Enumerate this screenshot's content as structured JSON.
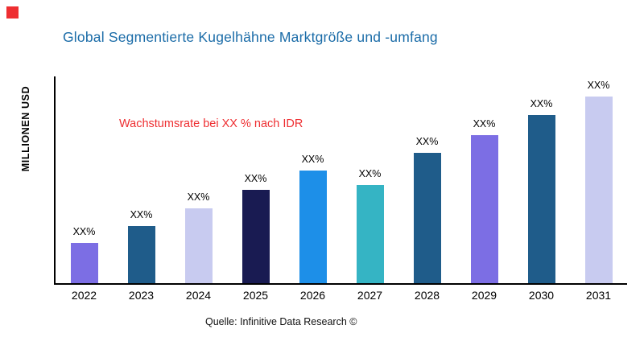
{
  "header": {
    "title": "Global Segmentierte Kugelhähne Marktgröße und -umfang",
    "title_color": "#1B6CA8",
    "logo_color": "#EE2E31"
  },
  "chart_data": {
    "type": "bar",
    "title": "Global Segmentierte Kugelhähne Marktgröße und -umfang",
    "ylabel": "MILLIONEN USD",
    "xlabel": "",
    "annotation": "Wachstumsrate bei XX % nach IDR",
    "annotation_color": "#EE2E31",
    "grid": false,
    "legend": "none",
    "categories": [
      "2022",
      "2023",
      "2024",
      "2025",
      "2026",
      "2027",
      "2028",
      "2029",
      "2030",
      "2031"
    ],
    "value_labels": [
      "XX%",
      "XX%",
      "XX%",
      "XX%",
      "XX%",
      "XX%",
      "XX%",
      "XX%",
      "XX%",
      "XX%"
    ],
    "relative_heights": [
      50,
      71,
      93,
      116,
      140,
      122,
      162,
      184,
      209,
      232
    ],
    "bar_colors": [
      "#7C6EE4",
      "#1F5C8A",
      "#C8CBF0",
      "#191B52",
      "#1D8FE8",
      "#35B4C4",
      "#1F5C8A",
      "#7C6EE4",
      "#1F5C8A",
      "#C8CBF0"
    ],
    "source": "Quelle: Infinitive Data Research ©"
  }
}
